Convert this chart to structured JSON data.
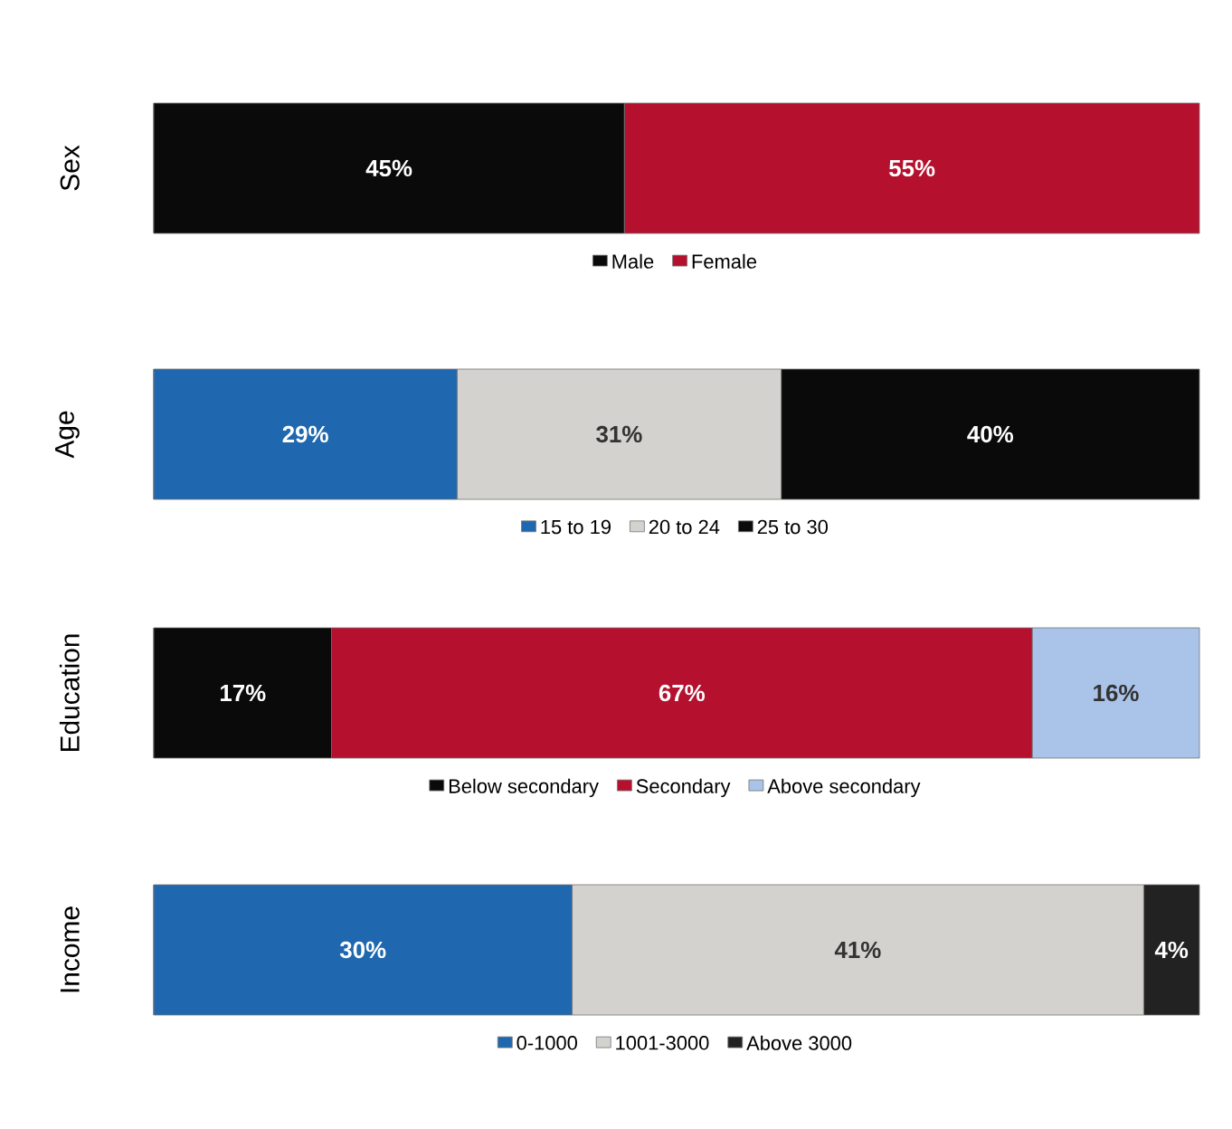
{
  "chart_data": [
    {
      "type": "bar",
      "orientation": "horizontal",
      "stacked": true,
      "ylabel": "Sex",
      "categories": [
        null
      ],
      "legend": "bottom",
      "series": [
        {
          "name": "Male",
          "color": "#0a0a0a",
          "values": [
            45
          ],
          "value_labels": [
            "45%"
          ]
        },
        {
          "name": "Female",
          "color": "#b5102e",
          "values": [
            55
          ],
          "value_labels": [
            "55%"
          ]
        }
      ]
    },
    {
      "type": "bar",
      "orientation": "horizontal",
      "stacked": true,
      "ylabel": "Age",
      "categories": [
        null
      ],
      "legend": "bottom",
      "series": [
        {
          "name": "15 to 19",
          "color": "#1f68b0",
          "values": [
            29
          ],
          "value_labels": [
            "29%"
          ]
        },
        {
          "name": "20 to 24",
          "color": "#d4d2ce",
          "values": [
            31
          ],
          "value_labels": [
            "31%"
          ]
        },
        {
          "name": "25 to 30",
          "color": "#0a0a0a",
          "values": [
            40
          ],
          "value_labels": [
            "40%"
          ]
        }
      ]
    },
    {
      "type": "bar",
      "orientation": "horizontal",
      "stacked": true,
      "ylabel": "Education",
      "categories": [
        null
      ],
      "legend": "bottom",
      "series": [
        {
          "name": "Below secondary",
          "color": "#0a0a0a",
          "values": [
            17
          ],
          "value_labels": [
            "17%"
          ]
        },
        {
          "name": "Secondary",
          "color": "#b5102e",
          "values": [
            67
          ],
          "value_labels": [
            "67%"
          ]
        },
        {
          "name": "Above secondary",
          "color": "#a9c4e8",
          "values": [
            16
          ],
          "value_labels": [
            "16%"
          ]
        }
      ]
    },
    {
      "type": "bar",
      "orientation": "horizontal",
      "stacked": true,
      "ylabel": "Income",
      "categories": [
        null
      ],
      "legend": "bottom",
      "series": [
        {
          "name": "0-1000",
          "color": "#1f68b0",
          "values": [
            30
          ],
          "value_labels": [
            "30%"
          ]
        },
        {
          "name": "1001-3000",
          "color": "#d4d2ce",
          "values": [
            41
          ],
          "value_labels": [
            "41%"
          ]
        },
        {
          "name": "Above 3000",
          "color": "#222222",
          "values": [
            4
          ],
          "value_labels": [
            "4%"
          ]
        }
      ]
    }
  ]
}
